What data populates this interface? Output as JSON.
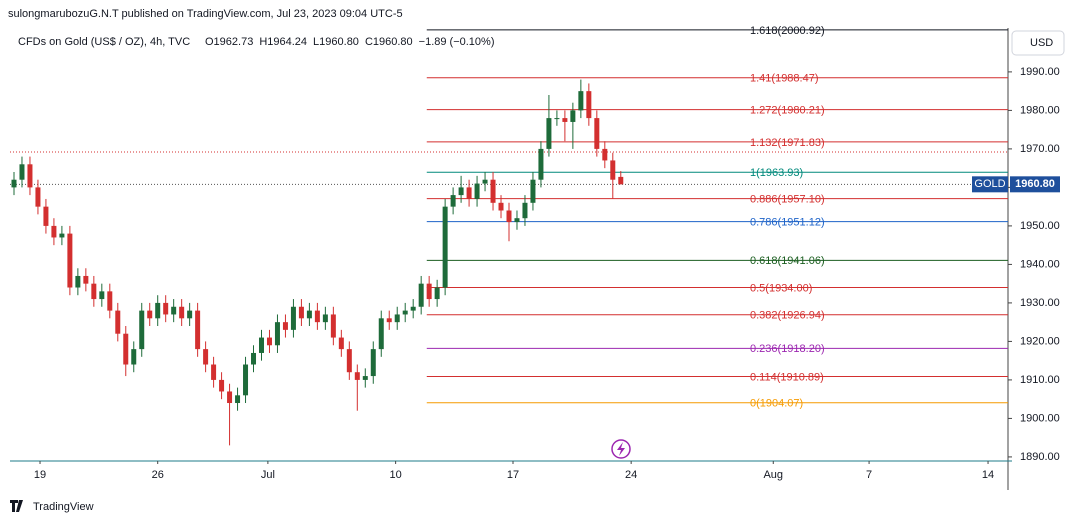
{
  "chart_data": {
    "type": "candlestick",
    "publisher": "sulongmarubozuG.N.T published on TradingView.com, Jul 23, 2023 09:04 UTC-5",
    "symbol": "CFDs on Gold (US$ / OZ), 4h, TVC",
    "ohlc_text": [
      "O1962.73",
      "H1964.24",
      "L1960.80",
      "C1960.80",
      "−1.89 (−0.10%)"
    ],
    "currency": "USD",
    "ticker": "GOLD",
    "last_price": {
      "value": 1960.8,
      "label": "1960.80"
    },
    "brand": "TradingView",
    "up_color": "#1e6b3a",
    "down_color": "#d32f2f",
    "open": [
      1960,
      1962,
      1966,
      1960,
      1955,
      1950,
      1947,
      1948,
      1934,
      1937,
      1935,
      1931,
      1933,
      1928,
      1922,
      1914,
      1918,
      1928,
      1926,
      1930,
      1927,
      1929,
      1926,
      1928,
      1918,
      1914,
      1910,
      1907,
      1904,
      1906,
      1914,
      1917,
      1921,
      1919,
      1925,
      1923,
      1929,
      1926,
      1928,
      1925,
      1927,
      1921,
      1918,
      1912,
      1910,
      1911,
      1918,
      1926,
      1925,
      1927,
      1928,
      1929,
      1935,
      1931,
      1934,
      1955,
      1958,
      1960,
      1957,
      1961,
      1962,
      1956,
      1954,
      1951,
      1952,
      1956,
      1962,
      1970,
      1978,
      1978,
      1977,
      1980,
      1985,
      1978,
      1970,
      1967,
      1962.73
    ],
    "high": [
      1964,
      1968,
      1968,
      1962,
      1957,
      1952,
      1950,
      1950,
      1939,
      1939,
      1937,
      1935,
      1935,
      1930,
      1924,
      1920,
      1930,
      1930,
      1932,
      1932,
      1931,
      1931,
      1930,
      1930,
      1920,
      1916,
      1912,
      1909,
      1908,
      1916,
      1919,
      1923,
      1923,
      1927,
      1927,
      1931,
      1931,
      1930,
      1930,
      1929,
      1929,
      1923,
      1920,
      1914,
      1913,
      1920,
      1928,
      1928,
      1929,
      1930,
      1931,
      1937,
      1937,
      1936,
      1957,
      1960,
      1963,
      1962,
      1963,
      1964,
      1964,
      1958,
      1956,
      1954,
      1958,
      1964,
      1972,
      1984,
      1980,
      1980,
      1982,
      1988,
      1987,
      1980,
      1972,
      1969,
      1964.24
    ],
    "low": [
      1958,
      1960,
      1958,
      1953,
      1948,
      1945,
      1945,
      1932,
      1932,
      1933,
      1929,
      1929,
      1926,
      1920,
      1911,
      1912,
      1916,
      1924,
      1924,
      1925,
      1925,
      1924,
      1924,
      1916,
      1912,
      1908,
      1905,
      1893,
      1902,
      1904,
      1912,
      1915,
      1917,
      1917,
      1921,
      1921,
      1924,
      1924,
      1923,
      1923,
      1919,
      1916,
      1910,
      1902,
      1908,
      1909,
      1916,
      1923,
      1923,
      1925,
      1926,
      1927,
      1929,
      1929,
      1932,
      1953,
      1956,
      1955,
      1955,
      1959,
      1954,
      1952,
      1946,
      1949,
      1950,
      1954,
      1960,
      1968,
      1976,
      1972,
      1970,
      1978,
      1976,
      1968,
      1965,
      1957,
      1960.8
    ],
    "close": [
      1962,
      1966,
      1960,
      1955,
      1950,
      1947,
      1948,
      1934,
      1937,
      1935,
      1931,
      1933,
      1928,
      1922,
      1914,
      1918,
      1928,
      1926,
      1930,
      1927,
      1929,
      1926,
      1928,
      1918,
      1914,
      1910,
      1907,
      1904,
      1906,
      1914,
      1917,
      1921,
      1919,
      1925,
      1923,
      1929,
      1926,
      1928,
      1925,
      1927,
      1921,
      1918,
      1912,
      1910,
      1911,
      1918,
      1926,
      1925,
      1927,
      1928,
      1929,
      1935,
      1931,
      1934,
      1955,
      1958,
      1960,
      1957,
      1961,
      1962,
      1956,
      1954,
      1951,
      1952,
      1956,
      1962,
      1970,
      1978,
      1978,
      1977,
      1980,
      1985,
      1978,
      1970,
      1967,
      1962,
      1960.8
    ],
    "xlim": [
      0,
      125
    ],
    "xticks": [
      {
        "value": 3.76,
        "label": "19"
      },
      {
        "value": 18.5,
        "label": "26"
      },
      {
        "value": 32.3,
        "label": "Jul"
      },
      {
        "value": 48.3,
        "label": "10"
      },
      {
        "value": 63.0,
        "label": "17"
      },
      {
        "value": 77.8,
        "label": "24"
      },
      {
        "value": 95.6,
        "label": "Aug"
      },
      {
        "value": 107.6,
        "label": "7"
      },
      {
        "value": 122.5,
        "label": "14"
      }
    ],
    "ylim": [
      1889.2,
      2001.4
    ],
    "yticks": [
      {
        "value": 1890,
        "label": "1890.00"
      },
      {
        "value": 1900,
        "label": "1900.00"
      },
      {
        "value": 1910,
        "label": "1910.00"
      },
      {
        "value": 1920,
        "label": "1920.00"
      },
      {
        "value": 1930,
        "label": "1930.00"
      },
      {
        "value": 1940,
        "label": "1940.00"
      },
      {
        "value": 1950,
        "label": "1950.00"
      },
      {
        "value": 1960,
        "label": "1960.00"
      },
      {
        "value": 1970,
        "label": "1970.00"
      },
      {
        "value": 1980,
        "label": "1980.00"
      },
      {
        "value": 1990,
        "label": "1990.00"
      }
    ],
    "fib_start": 52.2,
    "fib_levels": [
      {
        "label": "1.618(2000.92)",
        "price": 2000.92,
        "color": "#131722"
      },
      {
        "label": "1.41(1988.47)",
        "price": 1988.47,
        "color": "#d32f2f"
      },
      {
        "label": "1.272(1980.21)",
        "price": 1980.21,
        "color": "#d32f2f"
      },
      {
        "label": "1.132(1971.83)",
        "price": 1971.83,
        "color": "#d32f2f"
      },
      {
        "label": "1(1963.93)",
        "price": 1963.93,
        "color": "#00897b"
      },
      {
        "label": "0.886(1957.10)",
        "price": 1957.1,
        "color": "#d32f2f"
      },
      {
        "label": "0.786(1951.12)",
        "price": 1951.12,
        "color": "#1e63c8"
      },
      {
        "label": "0.618(1941.06)",
        "price": 1941.06,
        "color": "#1b5e20"
      },
      {
        "label": "0.5(1934.00)",
        "price": 1934.0,
        "color": "#d32f2f"
      },
      {
        "label": "0.382(1926.94)",
        "price": 1926.94,
        "color": "#d32f2f"
      },
      {
        "label": "0.236(1918.20)",
        "price": 1918.2,
        "color": "#9c27b0"
      },
      {
        "label": "0.114(1910.89)",
        "price": 1910.89,
        "color": "#d32f2f"
      },
      {
        "label": "0(1904.07)",
        "price": 1904.07,
        "color": "#f59a00"
      }
    ],
    "price_lines": [
      {
        "price": 1969.2,
        "color": "#d32f2f"
      },
      {
        "price": 1960.8,
        "color": "#555"
      }
    ]
  }
}
